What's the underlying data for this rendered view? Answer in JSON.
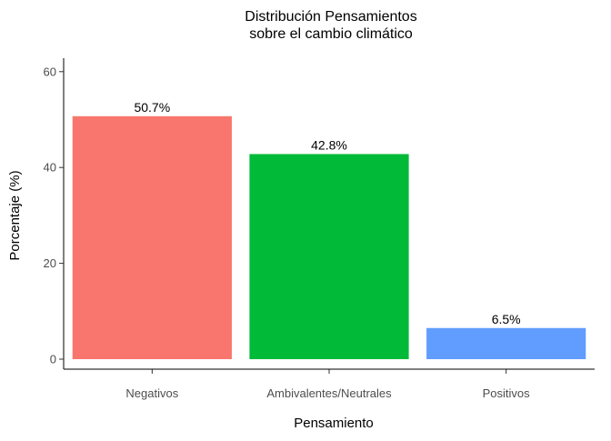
{
  "chart_data": {
    "type": "bar",
    "title": "Distribución Pensamientos\nsobre el cambio climático",
    "xlabel": "Pensamiento",
    "ylabel": "Porcentaje (%)",
    "categories": [
      "Negativos",
      "Ambivalentes/Neutrales",
      "Positivos"
    ],
    "values": [
      50.7,
      42.8,
      6.5
    ],
    "value_labels": [
      "50.7%",
      "42.8%",
      "6.5%"
    ],
    "colors": [
      "#F8766D",
      "#00BA38",
      "#619CFF"
    ],
    "ylim": [
      0,
      63
    ],
    "yticks": [
      0,
      20,
      40,
      60
    ],
    "grid": false,
    "legend": "none"
  }
}
